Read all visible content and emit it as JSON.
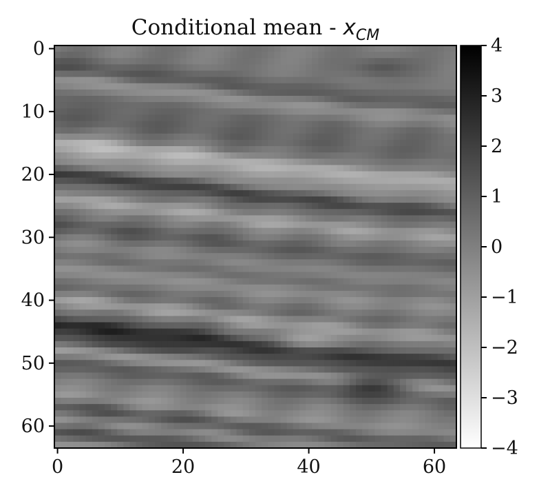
{
  "chart_data": {
    "type": "heatmap",
    "title": "Conditional mean - ",
    "title_math": "x",
    "title_subscript": "CM",
    "xlabel": "",
    "ylabel": "",
    "xlim": [
      -0.5,
      63.5
    ],
    "ylim": [
      63.5,
      -0.5
    ],
    "x_ticks": [
      0,
      20,
      40,
      60
    ],
    "y_ticks": [
      0,
      10,
      20,
      30,
      40,
      50,
      60
    ],
    "x_tick_labels": [
      "0",
      "20",
      "40",
      "60"
    ],
    "y_tick_labels": [
      "0",
      "10",
      "20",
      "30",
      "40",
      "50",
      "60"
    ],
    "colormap": "gray_r",
    "colorbar": {
      "vmin": -4,
      "vmax": 4,
      "ticks": [
        4,
        3,
        2,
        1,
        0,
        -1,
        -2,
        -3,
        -4
      ],
      "tick_labels": [
        "4",
        "3",
        "2",
        "1",
        "0",
        "−1",
        "−2",
        "−3",
        "−4"
      ]
    },
    "grid": false,
    "shape": [
      64,
      64
    ],
    "description_of_values": "64x64 field of layered horizontal bands, values roughly within [-2.5, 3], estimated",
    "band_profile_y": [
      0,
      3,
      5,
      8,
      11,
      13,
      15,
      18,
      20,
      22,
      24,
      26,
      28,
      31,
      33,
      35,
      38,
      40,
      42,
      44,
      46,
      48,
      50,
      53,
      55,
      57,
      59,
      61,
      63
    ],
    "band_profile_values_left": [
      0.2,
      1.3,
      -0.6,
      0.8,
      1.0,
      0.3,
      -1.8,
      -0.4,
      2.2,
      0.5,
      -1.2,
      0.2,
      1.3,
      -0.2,
      0.6,
      -0.5,
      0.7,
      -1.0,
      0.6,
      3.0,
      1.6,
      -0.8,
      1.2,
      0.0,
      -0.5,
      1.4,
      -0.3,
      1.5,
      -0.6
    ],
    "band_slope_rows_per_col": [
      0.09,
      0.12,
      0.1,
      0.08
    ],
    "features": [
      {
        "x": 50,
        "y": 54,
        "value": 2.8
      },
      {
        "x": 16,
        "y": 46,
        "value": 2.6
      },
      {
        "x": 52,
        "y": 3,
        "value": 1.6
      },
      {
        "x": 40,
        "y": 46,
        "value": -1.2
      }
    ]
  }
}
